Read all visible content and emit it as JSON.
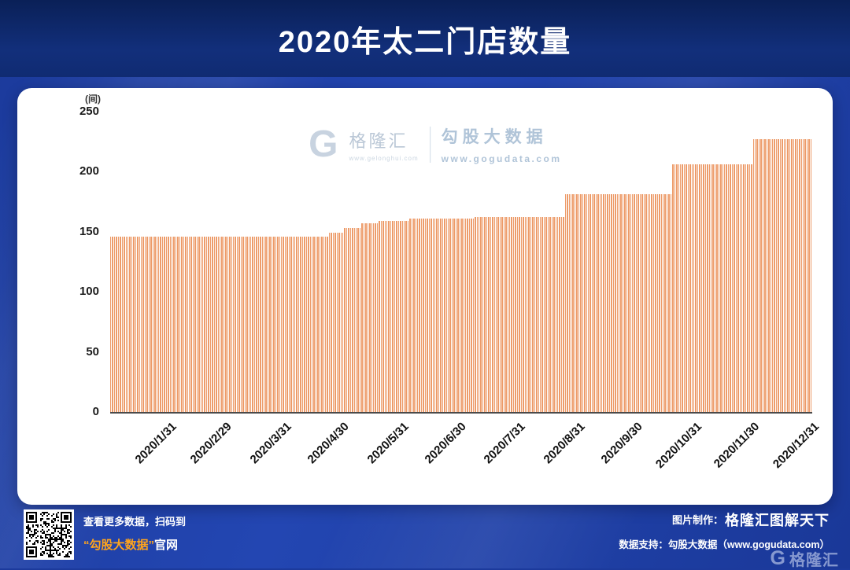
{
  "page": {
    "title": "2020年太二门店数量"
  },
  "chart": {
    "unit_label": "(间)",
    "watermark": {
      "logo_glyph": "G",
      "logo_text": "格隆汇",
      "logo_sub": "www.gelonghui.com",
      "brand": "勾股大数据",
      "brand_sub": "www.gogudata.com"
    }
  },
  "chart_data": {
    "type": "bar",
    "title": "2020年太二门店数量",
    "series_name": "太二门店数量",
    "xlabel": "",
    "ylabel": "(间)",
    "ylim": [
      0,
      250
    ],
    "yticks": [
      0,
      50,
      100,
      150,
      200,
      250
    ],
    "grid": false,
    "legend": false,
    "bar_color": "#ED9B69",
    "x_tick_labels": [
      "2020/1/31",
      "2020/2/29",
      "2020/3/31",
      "2020/4/30",
      "2020/5/31",
      "2020/6/30",
      "2020/7/31",
      "2020/8/31",
      "2020/9/30",
      "2020/10/31",
      "2020/11/30",
      "2020/12/31"
    ],
    "x_tick_day_of_year": [
      31,
      60,
      91,
      121,
      152,
      182,
      213,
      244,
      274,
      305,
      335,
      366
    ],
    "values_at_ticks": [
      146,
      146,
      146,
      149,
      159,
      161,
      162,
      181,
      181,
      206,
      206,
      227
    ],
    "days_in_year": 366,
    "daily_segments": [
      {
        "start_day": 1,
        "end_day": 114,
        "value": 146
      },
      {
        "start_day": 115,
        "end_day": 122,
        "value": 149
      },
      {
        "start_day": 123,
        "end_day": 131,
        "value": 153
      },
      {
        "start_day": 132,
        "end_day": 140,
        "value": 157
      },
      {
        "start_day": 141,
        "end_day": 156,
        "value": 159
      },
      {
        "start_day": 157,
        "end_day": 190,
        "value": 161
      },
      {
        "start_day": 191,
        "end_day": 237,
        "value": 162
      },
      {
        "start_day": 238,
        "end_day": 293,
        "value": 181
      },
      {
        "start_day": 294,
        "end_day": 335,
        "value": 206
      },
      {
        "start_day": 336,
        "end_day": 366,
        "value": 227
      }
    ]
  },
  "footer": {
    "qr_caption_line1": "查看更多数据，扫码到",
    "qr_caption_line2_highlight": "“勾股大数据”",
    "qr_caption_line2_rest": "官网",
    "credit_label": "图片制作：",
    "credit_brand": "格隆汇图解天下",
    "data_support": "数据支持：勾股大数据（www.gogudata.com）",
    "corner_logo_glyph": "G",
    "corner_logo": "格隆汇"
  }
}
